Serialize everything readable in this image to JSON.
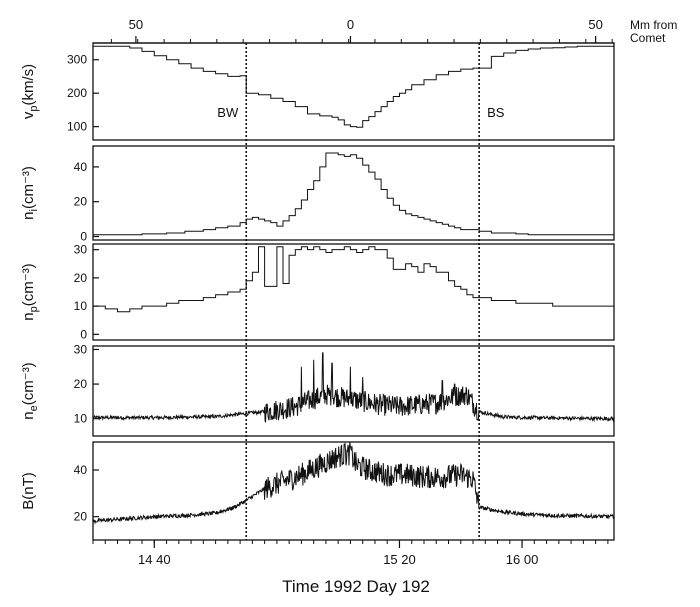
{
  "chart_data": {
    "type": "line",
    "title": "",
    "xlabel": "Time 1992 Day 192",
    "x_unit": "minutes (UT, Day 192)",
    "x_range": [
      870,
      955
    ],
    "x_ticks": [
      {
        "value": 880,
        "label": "14 40"
      },
      {
        "value": 920,
        "label": "15 20"
      },
      {
        "value": 940,
        "label": "16 00"
      }
    ],
    "top_axis": {
      "label_line1": "Mm from",
      "label_line2": "Comet",
      "ticks": [
        {
          "value": 877,
          "label": "50"
        },
        {
          "value": 912,
          "label": "0"
        },
        {
          "value": 952,
          "label": "50"
        }
      ]
    },
    "boundaries": [
      {
        "name": "BW",
        "x": 895
      },
      {
        "name": "BS",
        "x": 933
      }
    ],
    "panels": [
      {
        "id": "vp",
        "ylabel_main": "v",
        "ylabel_sub": "p",
        "ylabel_rest": "(km/s)",
        "ylim": [
          60,
          350
        ],
        "y_ticks": [
          {
            "value": 100,
            "label": "100"
          },
          {
            "value": 200,
            "label": "200"
          },
          {
            "value": 300,
            "label": "300"
          }
        ],
        "style": "step",
        "x": [
          870,
          872,
          874,
          876,
          878,
          880,
          882,
          884,
          886,
          888,
          890,
          892,
          894,
          895,
          897,
          899,
          901,
          903,
          905,
          907,
          909,
          910,
          911,
          912,
          913,
          914,
          915,
          916,
          917,
          918,
          919,
          920,
          921,
          922,
          924,
          926,
          928,
          930,
          932,
          933,
          935,
          937,
          939,
          941,
          943,
          945,
          947,
          949,
          951,
          953,
          955
        ],
        "y": [
          340,
          340,
          340,
          335,
          325,
          312,
          300,
          288,
          275,
          265,
          258,
          250,
          252,
          200,
          195,
          185,
          175,
          160,
          138,
          132,
          128,
          120,
          105,
          100,
          98,
          118,
          130,
          145,
          160,
          175,
          190,
          200,
          210,
          225,
          240,
          255,
          265,
          272,
          275,
          275,
          310,
          320,
          328,
          332,
          335,
          336,
          338,
          340,
          340,
          340,
          340
        ]
      },
      {
        "id": "ni",
        "ylabel_main": "n",
        "ylabel_sub": "i",
        "ylabel_rest": "(cm⁻³)",
        "ylim": [
          -2,
          52
        ],
        "y_ticks": [
          {
            "value": 0,
            "label": "0"
          },
          {
            "value": 20,
            "label": "20"
          },
          {
            "value": 40,
            "label": "40"
          }
        ],
        "style": "step",
        "x": [
          870,
          874,
          878,
          882,
          885,
          888,
          890,
          892,
          894,
          895,
          896,
          897,
          898,
          899,
          900,
          901,
          902,
          903,
          904,
          905,
          906,
          907,
          908,
          909,
          910,
          911,
          912,
          913,
          914,
          915,
          916,
          917,
          918,
          919,
          920,
          921,
          922,
          923,
          924,
          925,
          926,
          927,
          928,
          929,
          930,
          931,
          932,
          933,
          935,
          937,
          939,
          941,
          943,
          945,
          947,
          949,
          951,
          953,
          955
        ],
        "y": [
          1,
          1,
          1.5,
          2,
          3,
          4,
          5,
          6,
          8,
          10,
          11,
          10,
          9,
          8,
          6,
          9,
          12,
          16,
          21,
          27,
          32,
          40,
          48,
          48,
          47,
          46,
          47,
          45,
          41,
          37,
          33,
          27,
          22,
          18,
          15,
          13,
          12,
          11,
          10,
          9,
          8,
          7,
          6,
          5,
          4,
          4,
          4,
          3,
          2,
          2,
          1.5,
          1,
          1,
          1,
          1,
          1,
          1,
          1,
          1
        ]
      },
      {
        "id": "np",
        "ylabel_main": "n",
        "ylabel_sub": "p",
        "ylabel_rest": "(cm⁻³)",
        "ylim": [
          -2,
          32
        ],
        "y_ticks": [
          {
            "value": 0,
            "label": "0"
          },
          {
            "value": 10,
            "label": "10"
          },
          {
            "value": 20,
            "label": "20"
          },
          {
            "value": 30,
            "label": "30"
          }
        ],
        "style": "step",
        "x": [
          870,
          872,
          874,
          876,
          878,
          880,
          882,
          884,
          886,
          888,
          890,
          892,
          894,
          895,
          896,
          897,
          898,
          899,
          900,
          901,
          902,
          903,
          904,
          905,
          906,
          907,
          908,
          909,
          910,
          911,
          912,
          913,
          914,
          915,
          916,
          917,
          918,
          919,
          920,
          921,
          922,
          923,
          924,
          925,
          926,
          927,
          928,
          929,
          930,
          931,
          932,
          933,
          935,
          937,
          939,
          941,
          943,
          945,
          947,
          949,
          951,
          953,
          955
        ],
        "y": [
          10,
          9,
          8,
          9,
          10,
          10,
          11,
          12,
          12,
          13,
          14,
          15,
          16,
          19,
          22,
          31,
          17,
          17,
          31,
          18,
          28,
          30,
          31,
          30,
          31,
          30,
          29,
          30,
          30,
          31,
          30,
          29,
          30,
          31,
          30,
          30,
          27,
          23,
          23,
          25,
          24,
          22,
          25,
          24,
          22,
          22,
          19,
          17,
          16,
          14,
          13,
          13,
          12,
          12,
          11,
          11,
          11,
          10,
          10,
          10,
          10,
          10,
          10
        ]
      },
      {
        "id": "ne",
        "ylabel_main": "n",
        "ylabel_sub": "e",
        "ylabel_rest": "(cm⁻³)",
        "ylim": [
          5,
          31
        ],
        "y_ticks": [
          {
            "value": 10,
            "label": "10"
          },
          {
            "value": 20,
            "label": "20"
          },
          {
            "value": 30,
            "label": "30"
          }
        ],
        "style": "noisy",
        "base_x": [
          870,
          880,
          890,
          895,
          899,
          903,
          905,
          908,
          911,
          914,
          917,
          920,
          923,
          926,
          929,
          931,
          933,
          937,
          941,
          945,
          949,
          955
        ],
        "base_y": [
          10.3,
          10.3,
          10.6,
          11.5,
          12.2,
          13.5,
          15,
          17,
          16,
          15,
          14,
          13.5,
          14,
          14.5,
          16.5,
          17,
          12,
          10.5,
          10.3,
          10.2,
          10.1,
          10
        ],
        "spikes": [
          {
            "x": 904,
            "y": 25
          },
          {
            "x": 906,
            "y": 27
          },
          {
            "x": 907.5,
            "y": 29
          },
          {
            "x": 909,
            "y": 26
          },
          {
            "x": 912,
            "y": 25
          },
          {
            "x": 914,
            "y": 22
          },
          {
            "x": 927,
            "y": 21
          },
          {
            "x": 929,
            "y": 20
          }
        ]
      },
      {
        "id": "B",
        "ylabel_main": "B",
        "ylabel_sub": "",
        "ylabel_rest": "(nT)",
        "ylim": [
          10,
          52
        ],
        "y_ticks": [
          {
            "value": 20,
            "label": "20"
          },
          {
            "value": 40,
            "label": "40"
          }
        ],
        "style": "noisy",
        "base_x": [
          870,
          872,
          875,
          880,
          885,
          890,
          893,
          895,
          898,
          901,
          904,
          907,
          910,
          912,
          913,
          915,
          918,
          921,
          924,
          927,
          930,
          932,
          933,
          937,
          941,
          945,
          955
        ],
        "base_y": [
          18,
          18.5,
          19,
          20,
          20.5,
          21.5,
          24,
          27,
          32,
          35,
          38,
          42,
          46,
          47,
          42,
          40,
          38,
          38,
          37,
          37,
          38,
          36,
          24,
          22,
          21,
          20.5,
          20
        ],
        "spikes": [
          {
            "x": 911,
            "y": 51
          },
          {
            "x": 912,
            "y": 50
          }
        ]
      }
    ]
  }
}
